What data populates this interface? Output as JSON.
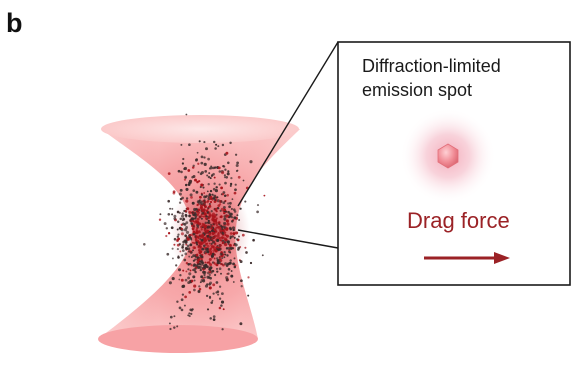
{
  "figure": {
    "panel_label": "b",
    "inset": {
      "title_line1": "Diffraction-limited",
      "title_line2": "emission spot",
      "arrow_label": "Drag force"
    },
    "colors": {
      "beam_fill": "#f9a7a7",
      "beam_rim": "#fbd2d2",
      "particle_dark": "#3a2a2a",
      "particle_red": "#a8141b",
      "spot_glow": "#f3b3c4",
      "spot_core": "#f08a94",
      "drag_color": "#9b2226",
      "frame": "#1a1a1a"
    },
    "icons": [
      "right-arrow-icon"
    ]
  }
}
